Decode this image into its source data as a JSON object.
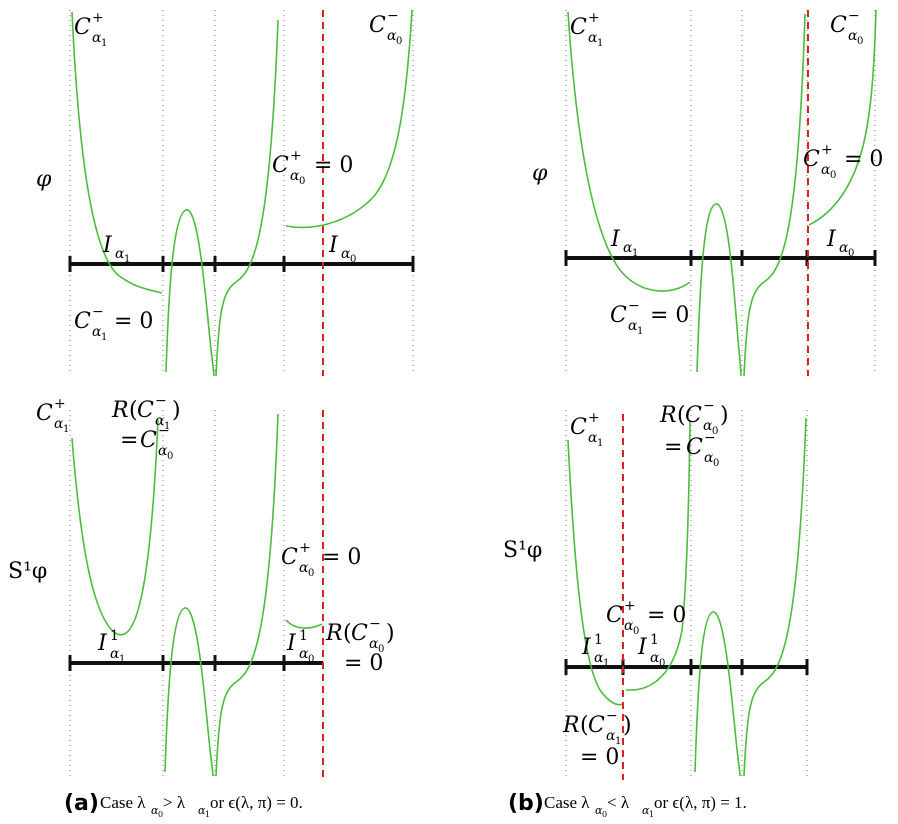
{
  "panels": [
    {
      "id": "a-top",
      "y_label": "φ",
      "labels": {
        "c_alpha1_plus": "C",
        "c_alpha0_minus": "C",
        "c_alpha0_plus_eq": "C",
        "i_alpha1": "I",
        "i_alpha0": "I",
        "c_alpha1_minus_eq": "C"
      }
    },
    {
      "id": "b-top",
      "y_label": "φ"
    },
    {
      "id": "a-bottom",
      "y_label": "S¹φ"
    },
    {
      "id": "b-bottom",
      "y_label": "S¹φ"
    }
  ],
  "symbols": {
    "C": "C",
    "I": "I",
    "R": "R",
    "plus": "+",
    "minus": "−",
    "alpha0": "α",
    "alpha1": "α",
    "zero": "0",
    "one": "1",
    "eq_zero": "= 0",
    "eq": "="
  },
  "captions": {
    "a_letter": "(a)",
    "a_text": "Case λ",
    "a_gt": " > λ",
    "a_or": " or ϵ(λ, π) = 0.",
    "b_letter": "(b)",
    "b_text": "Case λ",
    "b_lt": " < λ",
    "b_or": " or ϵ(λ, π) = 1."
  },
  "colors": {
    "curve": "#4cbc3c",
    "axis": "#111111",
    "dashed_line": "#e02020"
  }
}
